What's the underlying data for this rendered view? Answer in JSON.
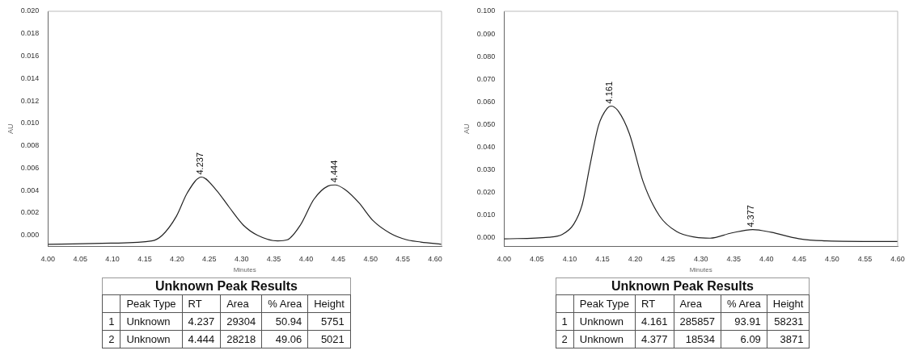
{
  "chart_data": [
    {
      "type": "line",
      "xlabel": "Minutes",
      "ylabel": "AU",
      "xlim": [
        4.0,
        4.61
      ],
      "ylim": [
        -0.001,
        0.02
      ],
      "xticks": [
        {
          "value": 4.0,
          "label": "4.00"
        },
        {
          "value": 4.05,
          "label": "4.05"
        },
        {
          "value": 4.1,
          "label": "4.10"
        },
        {
          "value": 4.15,
          "label": "4.15"
        },
        {
          "value": 4.2,
          "label": "4.20"
        },
        {
          "value": 4.25,
          "label": "4.25"
        },
        {
          "value": 4.3,
          "label": "4.30"
        },
        {
          "value": 4.35,
          "label": "4.35"
        },
        {
          "value": 4.4,
          "label": "4.40"
        },
        {
          "value": 4.45,
          "label": "4.45"
        },
        {
          "value": 4.5,
          "label": "4.50"
        },
        {
          "value": 4.55,
          "label": "4.55"
        },
        {
          "value": 4.6,
          "label": "4.60"
        }
      ],
      "yticks": [
        {
          "value": 0,
          "label": "0.000"
        },
        {
          "value": 0.002,
          "label": "0.002"
        },
        {
          "value": 0.004,
          "label": "0.004"
        },
        {
          "value": 0.006,
          "label": "0.006"
        },
        {
          "value": 0.008,
          "label": "0.008"
        },
        {
          "value": 0.01,
          "label": "0.010"
        },
        {
          "value": 0.012,
          "label": "0.012"
        },
        {
          "value": 0.014,
          "label": "0.014"
        },
        {
          "value": 0.016,
          "label": "0.016"
        },
        {
          "value": 0.018,
          "label": "0.018"
        },
        {
          "value": 0.02,
          "label": "0.020"
        }
      ],
      "grid": false,
      "legend": false,
      "marker": "none",
      "line_style": "solid",
      "series": [
        {
          "color": "#222222",
          "x": [
            4.0,
            4.098,
            4.161,
            4.177,
            4.199,
            4.216,
            4.238,
            4.26,
            4.281,
            4.303,
            4.325,
            4.356,
            4.371,
            4.391,
            4.412,
            4.434,
            4.445,
            4.46,
            4.482,
            4.504,
            4.53,
            4.556,
            4.578,
            4.61
          ],
          "values": [
            -0.0008,
            -0.0007,
            -0.0005,
            0.0,
            0.0017,
            0.0038,
            0.0052,
            0.0041,
            0.0025,
            0.0009,
            0.0,
            -0.0005,
            -0.0004,
            0.0009,
            0.0032,
            0.0044,
            0.0045,
            0.0041,
            0.0029,
            0.0013,
            0.0002,
            -0.0004,
            -0.0006,
            -0.0008
          ]
        }
      ],
      "annotations": [
        {
          "text": "4.237",
          "x": 4.237,
          "y": 0.0052
        },
        {
          "text": "4.444",
          "x": 4.444,
          "y": 0.0045
        }
      ]
    },
    {
      "type": "other",
      "title": "Unknown Peak Results",
      "categories": [
        null,
        "Peak Type",
        "RT",
        "Area",
        "% Area",
        "Height"
      ],
      "annotations": [
        "1",
        "Unknown",
        "4.237",
        "29304",
        "50.94",
        "5751",
        "2",
        "Unknown",
        "4.444",
        "28218",
        "49.06",
        "5021"
      ]
    },
    {
      "type": "line",
      "xlabel": "Minutes",
      "ylabel": "AU",
      "xlim": [
        4.0,
        4.6
      ],
      "ylim": [
        -0.004,
        0.1
      ],
      "xticks": [
        {
          "value": 4.0,
          "label": "4.00"
        },
        {
          "value": 4.05,
          "label": "4.05"
        },
        {
          "value": 4.1,
          "label": "4.10"
        },
        {
          "value": 4.15,
          "label": "4.15"
        },
        {
          "value": 4.2,
          "label": "4.20"
        },
        {
          "value": 4.25,
          "label": "4.25"
        },
        {
          "value": 4.3,
          "label": "4.30"
        },
        {
          "value": 4.35,
          "label": "4.35"
        },
        {
          "value": 4.4,
          "label": "4.40"
        },
        {
          "value": 4.45,
          "label": "4.45"
        },
        {
          "value": 4.5,
          "label": "4.50"
        },
        {
          "value": 4.55,
          "label": "4.55"
        },
        {
          "value": 4.6,
          "label": "4.60"
        }
      ],
      "yticks": [
        {
          "value": 0,
          "label": "0.000"
        },
        {
          "value": 0.01,
          "label": "0.010"
        },
        {
          "value": 0.02,
          "label": "0.020"
        },
        {
          "value": 0.03,
          "label": "0.030"
        },
        {
          "value": 0.04,
          "label": "0.040"
        },
        {
          "value": 0.05,
          "label": "0.050"
        },
        {
          "value": 0.06,
          "label": "0.060"
        },
        {
          "value": 0.07,
          "label": "0.070"
        },
        {
          "value": 0.08,
          "label": "0.080"
        },
        {
          "value": 0.09,
          "label": "0.090"
        },
        {
          "value": 0.1,
          "label": "0.100"
        }
      ],
      "grid": false,
      "legend": false,
      "marker": "none",
      "line_style": "solid",
      "series": [
        {
          "color": "#222222",
          "x": [
            4.0,
            4.068,
            4.089,
            4.106,
            4.119,
            4.131,
            4.144,
            4.157,
            4.163,
            4.174,
            4.191,
            4.212,
            4.237,
            4.263,
            4.292,
            4.314,
            4.347,
            4.379,
            4.407,
            4.449,
            4.492,
            4.6
          ],
          "values": [
            -0.0006,
            0.0001,
            0.0014,
            0.0058,
            0.0145,
            0.032,
            0.0496,
            0.0571,
            0.0581,
            0.0559,
            0.0459,
            0.0246,
            0.0095,
            0.0026,
            0.0001,
            -0.0003,
            0.002,
            0.0035,
            0.0023,
            -0.0005,
            -0.0015,
            -0.0018
          ]
        }
      ],
      "annotations": [
        {
          "text": "4.161",
          "x": 4.161,
          "y": 0.0581
        },
        {
          "text": "4.377",
          "x": 4.377,
          "y": 0.0035
        }
      ]
    },
    {
      "type": "other",
      "title": "Unknown Peak Results",
      "categories": [
        null,
        "Peak Type",
        "RT",
        "Area",
        "% Area",
        "Height"
      ],
      "annotations": [
        "1",
        "Unknown",
        "4.161",
        "285857",
        "93.91",
        "58231",
        "2",
        "Unknown",
        "4.377",
        "18534",
        "6.09",
        "3871"
      ]
    }
  ]
}
